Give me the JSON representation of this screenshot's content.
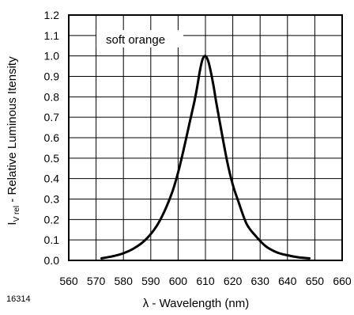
{
  "figure_id": "16314",
  "chart_data": {
    "type": "line",
    "title": "",
    "xlabel": "λ - Wavelength (nm)",
    "ylabel": {
      "main": "I",
      "subscript": "V rel",
      "rest": " - Relative Luminous Itensity"
    },
    "xlim": [
      560,
      660
    ],
    "ylim": [
      0,
      1.2
    ],
    "x_ticks": [
      560,
      570,
      580,
      590,
      600,
      610,
      620,
      630,
      640,
      650,
      660
    ],
    "y_ticks": [
      "0.0",
      "0.1",
      "0.2",
      "0.3",
      "0.4",
      "0.5",
      "0.6",
      "0.7",
      "0.8",
      "0.9",
      "1.0",
      "1.1",
      "1.2"
    ],
    "grid": true,
    "series": [
      {
        "name": "soft orange",
        "color": "#000000",
        "x": [
          572,
          576,
          580,
          584,
          588,
          592,
          595,
          598,
          600,
          602,
          604,
          606,
          607,
          608,
          609,
          610,
          611,
          612,
          613,
          614,
          616,
          618,
          620,
          622,
          625,
          628,
          632,
          636,
          640,
          644,
          648
        ],
        "y": [
          0.01,
          0.02,
          0.035,
          0.06,
          0.1,
          0.165,
          0.24,
          0.34,
          0.43,
          0.54,
          0.66,
          0.78,
          0.85,
          0.93,
          0.985,
          1.0,
          0.975,
          0.92,
          0.85,
          0.77,
          0.62,
          0.48,
          0.37,
          0.29,
          0.18,
          0.125,
          0.07,
          0.04,
          0.025,
          0.015,
          0.01
        ]
      }
    ]
  }
}
